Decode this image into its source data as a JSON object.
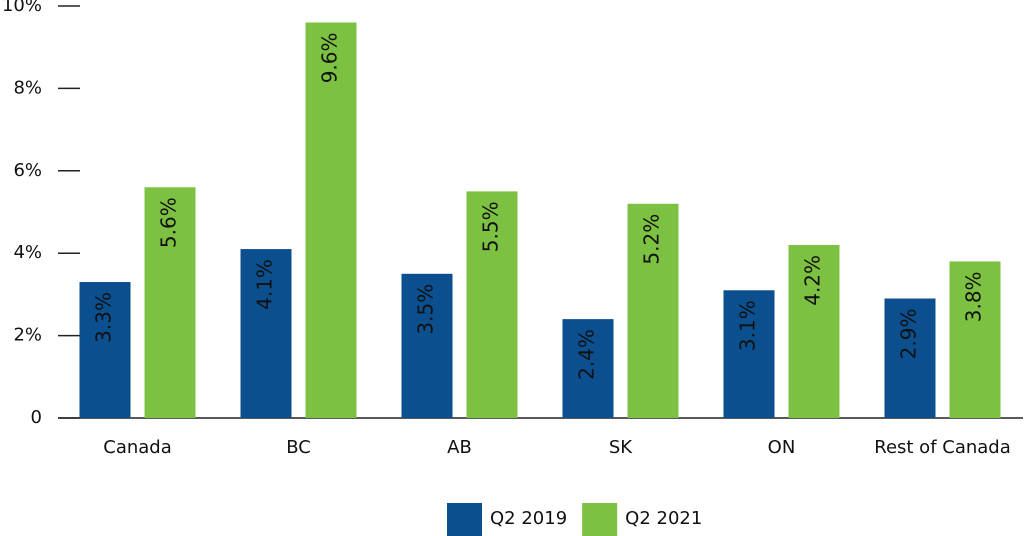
{
  "chart_data": {
    "type": "bar",
    "categories": [
      "Canada",
      "BC",
      "AB",
      "SK",
      "ON",
      "Rest of Canada"
    ],
    "series": [
      {
        "name": "Q2 2019",
        "color": "#0b4f8e",
        "values": [
          3.3,
          4.1,
          3.5,
          2.4,
          3.1,
          2.9
        ],
        "value_labels": [
          "3.3%",
          "4.1%",
          "3.5%",
          "2.4%",
          "3.1%",
          "2.9%"
        ],
        "label_color": "#ffffff"
      },
      {
        "name": "Q2 2021",
        "color": "#7dc142",
        "values": [
          5.6,
          9.6,
          5.5,
          5.2,
          4.2,
          3.8
        ],
        "value_labels": [
          "5.6%",
          "9.6%",
          "5.5%",
          "5.2%",
          "4.2%",
          "3.8%"
        ],
        "label_color": "#111111"
      }
    ],
    "ylim": [
      0,
      10
    ],
    "yticks": [
      0,
      {
        "value": 2,
        "label": "2%"
      },
      {
        "value": 4,
        "label": "4%"
      },
      {
        "value": 6,
        "label": "6%"
      },
      {
        "value": 8,
        "label": "8%"
      },
      {
        "value": 10,
        "label": "10%"
      }
    ],
    "legend": "bottom"
  }
}
